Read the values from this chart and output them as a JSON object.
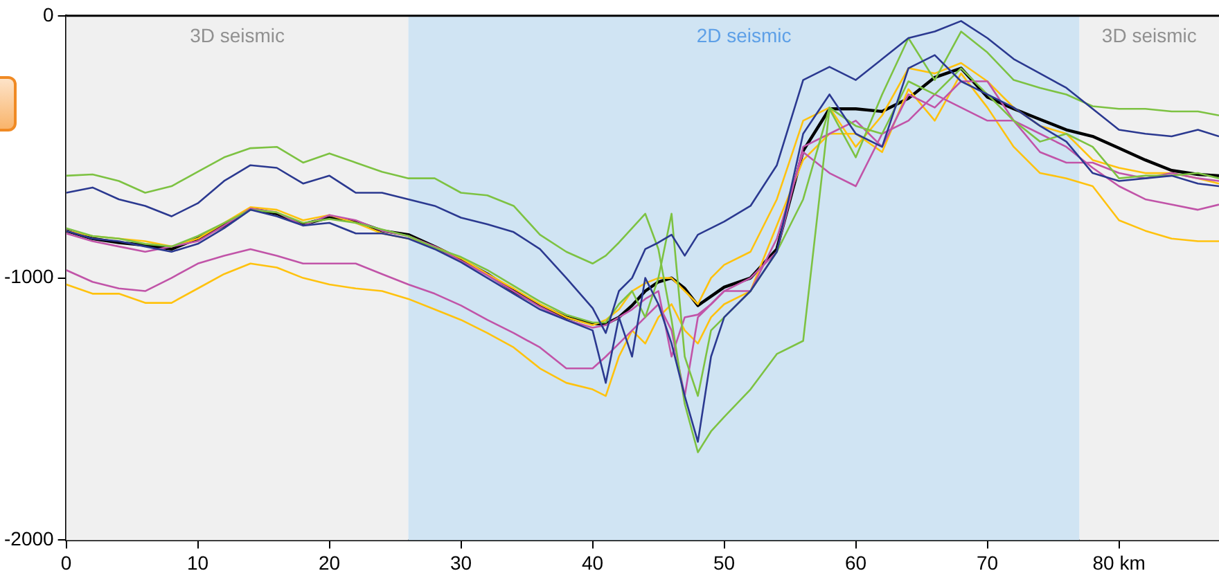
{
  "chart_data": {
    "type": "line",
    "x": [
      0,
      2,
      4,
      6,
      8,
      10,
      12,
      14,
      16,
      18,
      20,
      22,
      24,
      26,
      28,
      30,
      32,
      34,
      36,
      38,
      40,
      41,
      42,
      43,
      44,
      45,
      46,
      47,
      48,
      49,
      50,
      52,
      54,
      56,
      58,
      60,
      62,
      64,
      66,
      68,
      70,
      72,
      74,
      76,
      78,
      80,
      82,
      84,
      86,
      87.6
    ],
    "series": [
      {
        "color": "#2b3990",
        "values": [
          -675,
          -655,
          -700,
          -725,
          -765,
          -715,
          -630,
          -570,
          -580,
          -640,
          -610,
          -675,
          -675,
          -700,
          -725,
          -770,
          -795,
          -825,
          -890,
          -1000,
          -1115,
          -1210,
          -1050,
          -1000,
          -890,
          -865,
          -835,
          -915,
          -835,
          -810,
          -785,
          -725,
          -570,
          -245,
          -195,
          -245,
          -165,
          -85,
          -60,
          -20,
          -85,
          -165,
          -220,
          -275,
          -355,
          -435,
          -450,
          -460,
          -435,
          -460
        ]
      },
      {
        "color": "#2b3990",
        "values": [
          -820,
          -850,
          -860,
          -880,
          -900,
          -870,
          -810,
          -740,
          -765,
          -800,
          -790,
          -830,
          -830,
          -850,
          -890,
          -940,
          -1000,
          -1060,
          -1120,
          -1160,
          -1200,
          -1400,
          -1150,
          -1300,
          -1000,
          -1100,
          -1250,
          -1450,
          -1625,
          -1300,
          -1150,
          -1050,
          -900,
          -450,
          -300,
          -450,
          -500,
          -200,
          -150,
          -250,
          -300,
          -350,
          -420,
          -480,
          -600,
          -630,
          -620,
          -610,
          -640,
          -650
        ]
      },
      {
        "color": "#7dc242",
        "values": [
          -610,
          -605,
          -630,
          -675,
          -650,
          -595,
          -540,
          -505,
          -500,
          -560,
          -525,
          -560,
          -595,
          -620,
          -620,
          -675,
          -685,
          -725,
          -835,
          -900,
          -945,
          -915,
          -865,
          -810,
          -755,
          -890,
          -1160,
          -1480,
          -1665,
          -1585,
          -1530,
          -1425,
          -1290,
          -1240,
          -355,
          -540,
          -300,
          -85,
          -245,
          -60,
          -140,
          -245,
          -275,
          -300,
          -345,
          -355,
          -355,
          -365,
          -365,
          -380
        ]
      },
      {
        "color": "#7dc242",
        "values": [
          -810,
          -840,
          -850,
          -870,
          -880,
          -840,
          -790,
          -740,
          -750,
          -790,
          -775,
          -790,
          -815,
          -840,
          -885,
          -920,
          -970,
          -1030,
          -1090,
          -1140,
          -1170,
          -1170,
          -1100,
          -1050,
          -1150,
          -1000,
          -755,
          -1300,
          -1450,
          -1200,
          -1150,
          -1050,
          -900,
          -700,
          -350,
          -420,
          -450,
          -250,
          -300,
          -200,
          -300,
          -400,
          -480,
          -450,
          -500,
          -620,
          -610,
          -610,
          -600,
          -620
        ]
      },
      {
        "color": "#c154a8",
        "values": [
          -970,
          -1015,
          -1040,
          -1050,
          -1000,
          -945,
          -915,
          -890,
          -915,
          -945,
          -945,
          -945,
          -985,
          -1025,
          -1060,
          -1105,
          -1160,
          -1210,
          -1265,
          -1345,
          -1345,
          -1300,
          -1250,
          -1200,
          -1150,
          -1100,
          -1200,
          -1450,
          -1150,
          -1100,
          -1050,
          -1000,
          -900,
          -500,
          -450,
          -400,
          -500,
          -300,
          -350,
          -250,
          -250,
          -400,
          -450,
          -500,
          -580,
          -650,
          -700,
          -720,
          -740,
          -720
        ]
      },
      {
        "color": "#c154a8",
        "values": [
          -830,
          -860,
          -880,
          -900,
          -880,
          -860,
          -800,
          -735,
          -750,
          -800,
          -760,
          -780,
          -820,
          -840,
          -880,
          -935,
          -990,
          -1050,
          -1110,
          -1160,
          -1190,
          -1180,
          -1150,
          -1120,
          -1080,
          -1050,
          -1300,
          -1150,
          -1140,
          -1100,
          -1050,
          -1050,
          -850,
          -520,
          -600,
          -650,
          -450,
          -400,
          -300,
          -350,
          -400,
          -400,
          -520,
          -560,
          -560,
          -600,
          -620,
          -600,
          -620,
          -630
        ]
      },
      {
        "color": "#ffc20e",
        "values": [
          -1025,
          -1060,
          -1060,
          -1095,
          -1095,
          -1040,
          -985,
          -945,
          -960,
          -1000,
          -1025,
          -1040,
          -1050,
          -1080,
          -1120,
          -1160,
          -1210,
          -1265,
          -1345,
          -1400,
          -1425,
          -1450,
          -1300,
          -1200,
          -1250,
          -1150,
          -1100,
          -1200,
          -1250,
          -1150,
          -1100,
          -1050,
          -800,
          -550,
          -450,
          -450,
          -520,
          -280,
          -400,
          -220,
          -350,
          -500,
          -600,
          -620,
          -650,
          -780,
          -820,
          -850,
          -860,
          -860
        ]
      },
      {
        "color": "#ffc20e",
        "values": [
          -820,
          -840,
          -850,
          -860,
          -880,
          -850,
          -790,
          -730,
          -740,
          -780,
          -760,
          -790,
          -830,
          -850,
          -880,
          -925,
          -985,
          -1040,
          -1100,
          -1150,
          -1180,
          -1160,
          -1120,
          -1050,
          -1020,
          -1000,
          -1000,
          -1050,
          -1100,
          -1000,
          -950,
          -900,
          -700,
          -400,
          -350,
          -500,
          -380,
          -200,
          -220,
          -180,
          -250,
          -350,
          -420,
          -450,
          -550,
          -580,
          -600,
          -600,
          -620,
          -640
        ]
      },
      {
        "color": "#000000",
        "values": [
          -820,
          -850,
          -865,
          -875,
          -890,
          -850,
          -800,
          -735,
          -755,
          -795,
          -770,
          -785,
          -820,
          -835,
          -880,
          -930,
          -985,
          -1050,
          -1105,
          -1150,
          -1175,
          -1175,
          -1150,
          -1105,
          -1050,
          -1015,
          -1000,
          -1040,
          -1105,
          -1070,
          -1035,
          -1000,
          -890,
          -515,
          -355,
          -355,
          -365,
          -315,
          -235,
          -200,
          -310,
          -355,
          -395,
          -435,
          -460,
          -505,
          -550,
          -590,
          -605,
          -610
        ]
      }
    ],
    "xlim": [
      0,
      87.6
    ],
    "xticks": [
      0,
      10,
      20,
      30,
      40,
      50,
      60,
      70,
      {
        "value": 80,
        "label": "80 km"
      }
    ],
    "ylim": [
      -2000,
      0
    ],
    "yticks": [
      0,
      -1000,
      -2000
    ],
    "bands": [
      {
        "axis": "x",
        "from": 0,
        "to": 26,
        "label": "3D seismic",
        "color": "#f0f0f0"
      },
      {
        "axis": "x",
        "from": 26,
        "to": 77,
        "label": "2D seismic",
        "color": "#d0e4f3"
      },
      {
        "axis": "x",
        "from": 77,
        "to": 87.6,
        "label": "3D seismic",
        "color": "#f0f0f0"
      }
    ],
    "grid": false,
    "legend": false,
    "line_style": "solid",
    "marker": "none"
  }
}
